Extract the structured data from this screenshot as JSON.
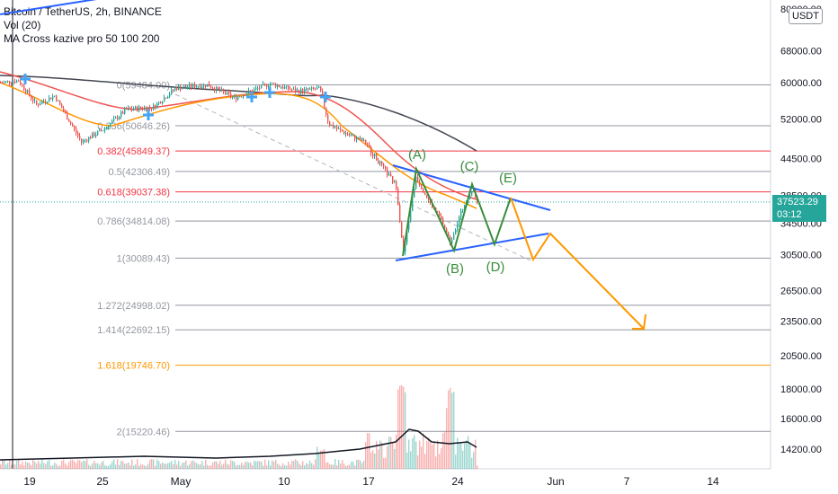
{
  "legend": {
    "symbol": "Bitcoin / TetherUS, 2h, BINANCE",
    "volume": "Vol (20)",
    "ma": "MA Cross kazive pro 50 100 200"
  },
  "price_scale": {
    "currency": "USDT",
    "last_price": "37523.29",
    "countdown": "03:12",
    "top_label_partial": "80000.00"
  },
  "chart_data": {
    "type": "candlestick",
    "title": "Bitcoin / TetherUS, 2h, BINANCE",
    "y_scale": "log",
    "ylim": [
      13000,
      80000
    ],
    "yticks": [
      14200,
      16000,
      18000,
      20500,
      23500,
      26500,
      30500,
      34500,
      38500,
      44500,
      52000,
      60000,
      68000
    ],
    "ytick_labels": [
      "14200.00",
      "16000.00",
      "18000.00",
      "20500.00",
      "23500.00",
      "26500.00",
      "30500.00",
      "34500.00",
      "38500.00",
      "44500.00",
      "52000.00",
      "60000.00",
      "68000.00"
    ],
    "xticks": [
      "19",
      "25",
      "May",
      "10",
      "17",
      "24",
      "Jun",
      "7",
      "14"
    ],
    "fib_levels": [
      {
        "ratio": "0",
        "price": 59484.0,
        "label": "0(59484.00)",
        "color": "#9598a1"
      },
      {
        "ratio": "0.236",
        "price": 50646.26,
        "label": "0.236(50646.26)",
        "color": "#9598a1"
      },
      {
        "ratio": "0.382",
        "price": 45849.37,
        "label": "0.382(45849.37)",
        "color": "#f23645"
      },
      {
        "ratio": "0.5",
        "price": 42306.49,
        "label": "0.5(42306.49)",
        "color": "#9598a1"
      },
      {
        "ratio": "0.618",
        "price": 39037.38,
        "label": "0.618(39037.38)",
        "color": "#f23645"
      },
      {
        "ratio": "0.786",
        "price": 34814.08,
        "label": "0.786(34814.08)",
        "color": "#9598a1"
      },
      {
        "ratio": "1",
        "price": 30089.43,
        "label": "1(30089.43)",
        "color": "#9598a1"
      },
      {
        "ratio": "1.272",
        "price": 24998.02,
        "label": "1.272(24998.02)",
        "color": "#9598a1"
      },
      {
        "ratio": "1.414",
        "price": 22692.15,
        "label": "1.414(22692.15)",
        "color": "#9598a1"
      },
      {
        "ratio": "1.618",
        "price": 19746.7,
        "label": "1.618(19746.70)",
        "color": "#ff9800"
      },
      {
        "ratio": "2",
        "price": 15220.46,
        "label": "2(15220.46)",
        "color": "#9598a1"
      }
    ],
    "wave_labels": [
      "(A)",
      "(B)",
      "(C)",
      "(D)",
      "(E)"
    ],
    "last_price": 37523.29,
    "colors": {
      "up": "#26a69a",
      "down": "#ef5350",
      "triangle": "#2962ff",
      "waves": "#388e3c",
      "projection": "#ff9800",
      "ma50": "#ff9800",
      "ma100": "#ef5350",
      "ma200": "#434651",
      "cross": "#42a5f5",
      "volume_ma": "#131722"
    }
  }
}
